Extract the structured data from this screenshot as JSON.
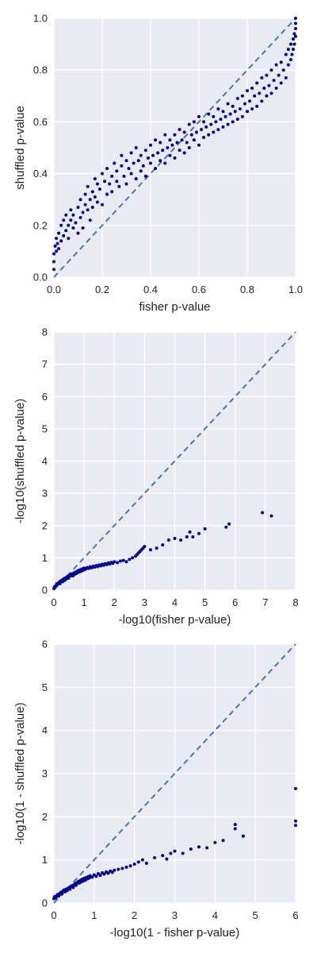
{
  "chart_data": [
    {
      "type": "scatter",
      "xlabel": "fisher p-value",
      "ylabel": "shuffled p-value",
      "xlim": [
        0,
        1
      ],
      "ylim": [
        0,
        1
      ],
      "xticks": [
        "0.0",
        "0.2",
        "0.4",
        "0.6",
        "0.8",
        "1.0"
      ],
      "yticks": [
        "0.0",
        "0.2",
        "0.4",
        "0.6",
        "0.8",
        "1.0"
      ],
      "grid": true,
      "reference_line": "y = x (dashed)",
      "color": "#00008B",
      "line_color": "#4C72B0",
      "points": [
        [
          0.0,
          0.03
        ],
        [
          0.0,
          0.06
        ],
        [
          0.0,
          0.09
        ],
        [
          0.005,
          0.12
        ],
        [
          0.01,
          0.1
        ],
        [
          0.01,
          0.15
        ],
        [
          0.015,
          0.13
        ],
        [
          0.02,
          0.17
        ],
        [
          0.02,
          0.11
        ],
        [
          0.03,
          0.14
        ],
        [
          0.03,
          0.2
        ],
        [
          0.04,
          0.16
        ],
        [
          0.04,
          0.22
        ],
        [
          0.05,
          0.18
        ],
        [
          0.05,
          0.24
        ],
        [
          0.06,
          0.2
        ],
        [
          0.06,
          0.15
        ],
        [
          0.07,
          0.22
        ],
        [
          0.07,
          0.26
        ],
        [
          0.08,
          0.19
        ],
        [
          0.08,
          0.24
        ],
        [
          0.09,
          0.21
        ],
        [
          0.1,
          0.27
        ],
        [
          0.1,
          0.17
        ],
        [
          0.11,
          0.23
        ],
        [
          0.11,
          0.3
        ],
        [
          0.12,
          0.25
        ],
        [
          0.12,
          0.19
        ],
        [
          0.13,
          0.28
        ],
        [
          0.13,
          0.32
        ],
        [
          0.14,
          0.26
        ],
        [
          0.14,
          0.35
        ],
        [
          0.15,
          0.3
        ],
        [
          0.15,
          0.22
        ],
        [
          0.16,
          0.33
        ],
        [
          0.16,
          0.27
        ],
        [
          0.17,
          0.38
        ],
        [
          0.17,
          0.31
        ],
        [
          0.18,
          0.29
        ],
        [
          0.18,
          0.36
        ],
        [
          0.19,
          0.34
        ],
        [
          0.2,
          0.4
        ],
        [
          0.2,
          0.28
        ],
        [
          0.21,
          0.37
        ],
        [
          0.22,
          0.32
        ],
        [
          0.22,
          0.42
        ],
        [
          0.23,
          0.36
        ],
        [
          0.24,
          0.39
        ],
        [
          0.24,
          0.33
        ],
        [
          0.25,
          0.44
        ],
        [
          0.26,
          0.37
        ],
        [
          0.26,
          0.41
        ],
        [
          0.27,
          0.35
        ],
        [
          0.28,
          0.43
        ],
        [
          0.28,
          0.47
        ],
        [
          0.29,
          0.39
        ],
        [
          0.3,
          0.45
        ],
        [
          0.3,
          0.36
        ],
        [
          0.31,
          0.42
        ],
        [
          0.32,
          0.48
        ],
        [
          0.32,
          0.4
        ],
        [
          0.33,
          0.44
        ],
        [
          0.34,
          0.38
        ],
        [
          0.34,
          0.5
        ],
        [
          0.35,
          0.45
        ],
        [
          0.36,
          0.41
        ],
        [
          0.36,
          0.47
        ],
        [
          0.37,
          0.43
        ],
        [
          0.38,
          0.49
        ],
        [
          0.38,
          0.39
        ],
        [
          0.39,
          0.46
        ],
        [
          0.4,
          0.44
        ],
        [
          0.4,
          0.51
        ],
        [
          0.41,
          0.47
        ],
        [
          0.42,
          0.42
        ],
        [
          0.42,
          0.53
        ],
        [
          0.43,
          0.48
        ],
        [
          0.44,
          0.45
        ],
        [
          0.44,
          0.52
        ],
        [
          0.45,
          0.49
        ],
        [
          0.46,
          0.44
        ],
        [
          0.46,
          0.55
        ],
        [
          0.47,
          0.5
        ],
        [
          0.48,
          0.47
        ],
        [
          0.48,
          0.53
        ],
        [
          0.49,
          0.51
        ],
        [
          0.5,
          0.46
        ],
        [
          0.5,
          0.55
        ],
        [
          0.51,
          0.52
        ],
        [
          0.52,
          0.49
        ],
        [
          0.52,
          0.57
        ],
        [
          0.53,
          0.53
        ],
        [
          0.54,
          0.48
        ],
        [
          0.54,
          0.56
        ],
        [
          0.55,
          0.52
        ],
        [
          0.56,
          0.59
        ],
        [
          0.56,
          0.5
        ],
        [
          0.57,
          0.55
        ],
        [
          0.58,
          0.53
        ],
        [
          0.58,
          0.6
        ],
        [
          0.59,
          0.56
        ],
        [
          0.6,
          0.51
        ],
        [
          0.6,
          0.62
        ],
        [
          0.61,
          0.57
        ],
        [
          0.62,
          0.54
        ],
        [
          0.62,
          0.6
        ],
        [
          0.63,
          0.58
        ],
        [
          0.64,
          0.55
        ],
        [
          0.64,
          0.63
        ],
        [
          0.65,
          0.59
        ],
        [
          0.66,
          0.56
        ],
        [
          0.66,
          0.62
        ],
        [
          0.67,
          0.6
        ],
        [
          0.68,
          0.57
        ],
        [
          0.68,
          0.65
        ],
        [
          0.69,
          0.61
        ],
        [
          0.7,
          0.58
        ],
        [
          0.7,
          0.64
        ],
        [
          0.71,
          0.62
        ],
        [
          0.72,
          0.59
        ],
        [
          0.72,
          0.67
        ],
        [
          0.73,
          0.63
        ],
        [
          0.74,
          0.6
        ],
        [
          0.74,
          0.66
        ],
        [
          0.75,
          0.64
        ],
        [
          0.76,
          0.61
        ],
        [
          0.76,
          0.69
        ],
        [
          0.77,
          0.65
        ],
        [
          0.78,
          0.62
        ],
        [
          0.78,
          0.7
        ],
        [
          0.79,
          0.67
        ],
        [
          0.8,
          0.64
        ],
        [
          0.8,
          0.72
        ],
        [
          0.81,
          0.68
        ],
        [
          0.82,
          0.65
        ],
        [
          0.82,
          0.73
        ],
        [
          0.83,
          0.7
        ],
        [
          0.84,
          0.66
        ],
        [
          0.84,
          0.75
        ],
        [
          0.85,
          0.71
        ],
        [
          0.86,
          0.68
        ],
        [
          0.86,
          0.77
        ],
        [
          0.87,
          0.73
        ],
        [
          0.88,
          0.7
        ],
        [
          0.88,
          0.78
        ],
        [
          0.89,
          0.74
        ],
        [
          0.9,
          0.71
        ],
        [
          0.9,
          0.8
        ],
        [
          0.91,
          0.76
        ],
        [
          0.92,
          0.73
        ],
        [
          0.92,
          0.82
        ],
        [
          0.93,
          0.78
        ],
        [
          0.94,
          0.75
        ],
        [
          0.94,
          0.83
        ],
        [
          0.95,
          0.8
        ],
        [
          0.96,
          0.77
        ],
        [
          0.96,
          0.86
        ],
        [
          0.97,
          0.82
        ],
        [
          0.97,
          0.88
        ],
        [
          0.98,
          0.84
        ],
        [
          0.98,
          0.9
        ],
        [
          0.985,
          0.86
        ],
        [
          0.99,
          0.92
        ],
        [
          0.99,
          0.88
        ],
        [
          0.995,
          0.94
        ],
        [
          0.995,
          0.9
        ],
        [
          1.0,
          0.96
        ],
        [
          1.0,
          0.93
        ],
        [
          1.0,
          0.98
        ],
        [
          1.0,
          1.0
        ]
      ]
    },
    {
      "type": "scatter",
      "xlabel": "-log10(fisher p-value)",
      "ylabel": "-log10(shuffled p-value)",
      "xlim": [
        0,
        8
      ],
      "ylim": [
        0,
        8
      ],
      "xticks": [
        "0",
        "1",
        "2",
        "3",
        "4",
        "5",
        "6",
        "7",
        "8"
      ],
      "yticks": [
        "0",
        "1",
        "2",
        "3",
        "4",
        "5",
        "6",
        "7",
        "8"
      ],
      "grid": true,
      "reference_line": "y = x (dashed)",
      "color": "#00008B",
      "line_color": "#4C72B0",
      "points": [
        [
          0.0,
          0.05
        ],
        [
          0.02,
          0.1
        ],
        [
          0.05,
          0.12
        ],
        [
          0.08,
          0.15
        ],
        [
          0.1,
          0.2
        ],
        [
          0.12,
          0.18
        ],
        [
          0.15,
          0.22
        ],
        [
          0.18,
          0.25
        ],
        [
          0.2,
          0.2
        ],
        [
          0.22,
          0.28
        ],
        [
          0.25,
          0.3
        ],
        [
          0.28,
          0.26
        ],
        [
          0.3,
          0.32
        ],
        [
          0.33,
          0.35
        ],
        [
          0.35,
          0.3
        ],
        [
          0.38,
          0.38
        ],
        [
          0.4,
          0.34
        ],
        [
          0.43,
          0.4
        ],
        [
          0.45,
          0.42
        ],
        [
          0.48,
          0.37
        ],
        [
          0.5,
          0.45
        ],
        [
          0.53,
          0.43
        ],
        [
          0.55,
          0.48
        ],
        [
          0.58,
          0.46
        ],
        [
          0.6,
          0.5
        ],
        [
          0.63,
          0.44
        ],
        [
          0.65,
          0.52
        ],
        [
          0.68,
          0.49
        ],
        [
          0.7,
          0.55
        ],
        [
          0.73,
          0.51
        ],
        [
          0.75,
          0.57
        ],
        [
          0.78,
          0.54
        ],
        [
          0.8,
          0.6
        ],
        [
          0.83,
          0.56
        ],
        [
          0.85,
          0.62
        ],
        [
          0.88,
          0.58
        ],
        [
          0.9,
          0.64
        ],
        [
          0.93,
          0.6
        ],
        [
          0.95,
          0.66
        ],
        [
          0.98,
          0.62
        ],
        [
          1.0,
          0.68
        ],
        [
          1.05,
          0.65
        ],
        [
          1.1,
          0.7
        ],
        [
          1.15,
          0.67
        ],
        [
          1.2,
          0.72
        ],
        [
          1.25,
          0.69
        ],
        [
          1.3,
          0.74
        ],
        [
          1.35,
          0.71
        ],
        [
          1.4,
          0.76
        ],
        [
          1.45,
          0.73
        ],
        [
          1.5,
          0.78
        ],
        [
          1.55,
          0.75
        ],
        [
          1.6,
          0.8
        ],
        [
          1.65,
          0.77
        ],
        [
          1.7,
          0.82
        ],
        [
          1.75,
          0.79
        ],
        [
          1.8,
          0.84
        ],
        [
          1.85,
          0.81
        ],
        [
          1.9,
          0.86
        ],
        [
          1.95,
          0.83
        ],
        [
          2.0,
          0.88
        ],
        [
          2.1,
          0.85
        ],
        [
          2.2,
          0.9
        ],
        [
          2.3,
          0.92
        ],
        [
          2.4,
          0.88
        ],
        [
          2.5,
          0.95
        ],
        [
          2.6,
          1.0
        ],
        [
          2.7,
          1.05
        ],
        [
          2.75,
          1.1
        ],
        [
          2.8,
          1.15
        ],
        [
          2.85,
          1.2
        ],
        [
          2.9,
          1.25
        ],
        [
          2.95,
          1.3
        ],
        [
          3.0,
          1.35
        ],
        [
          3.2,
          1.25
        ],
        [
          3.4,
          1.3
        ],
        [
          3.6,
          1.4
        ],
        [
          3.8,
          1.55
        ],
        [
          4.0,
          1.6
        ],
        [
          4.2,
          1.55
        ],
        [
          4.4,
          1.65
        ],
        [
          4.5,
          1.8
        ],
        [
          4.6,
          1.65
        ],
        [
          4.8,
          1.75
        ],
        [
          5.0,
          1.9
        ],
        [
          5.7,
          1.95
        ],
        [
          5.8,
          2.05
        ],
        [
          6.9,
          2.4
        ],
        [
          7.2,
          2.3
        ]
      ]
    },
    {
      "type": "scatter",
      "xlabel": "-log10(1 - fisher p-value)",
      "ylabel": "-log10(1 - shuffled p-value)",
      "xlim": [
        0,
        6
      ],
      "ylim": [
        0,
        6
      ],
      "xticks": [
        "0",
        "1",
        "2",
        "3",
        "4",
        "5",
        "6"
      ],
      "yticks": [
        "0",
        "1",
        "2",
        "3",
        "4",
        "5",
        "6"
      ],
      "grid": true,
      "reference_line": "y = x (dashed)",
      "color": "#00008B",
      "line_color": "#4C72B0",
      "points": [
        [
          0.0,
          0.1
        ],
        [
          0.02,
          0.15
        ],
        [
          0.05,
          0.12
        ],
        [
          0.08,
          0.18
        ],
        [
          0.1,
          0.2
        ],
        [
          0.12,
          0.16
        ],
        [
          0.15,
          0.22
        ],
        [
          0.18,
          0.25
        ],
        [
          0.2,
          0.21
        ],
        [
          0.22,
          0.27
        ],
        [
          0.25,
          0.3
        ],
        [
          0.28,
          0.26
        ],
        [
          0.3,
          0.32
        ],
        [
          0.33,
          0.29
        ],
        [
          0.35,
          0.34
        ],
        [
          0.38,
          0.36
        ],
        [
          0.4,
          0.32
        ],
        [
          0.43,
          0.38
        ],
        [
          0.45,
          0.4
        ],
        [
          0.48,
          0.36
        ],
        [
          0.5,
          0.42
        ],
        [
          0.53,
          0.45
        ],
        [
          0.55,
          0.41
        ],
        [
          0.58,
          0.47
        ],
        [
          0.6,
          0.5
        ],
        [
          0.63,
          0.46
        ],
        [
          0.65,
          0.52
        ],
        [
          0.68,
          0.49
        ],
        [
          0.7,
          0.55
        ],
        [
          0.73,
          0.51
        ],
        [
          0.75,
          0.57
        ],
        [
          0.78,
          0.53
        ],
        [
          0.8,
          0.59
        ],
        [
          0.83,
          0.56
        ],
        [
          0.85,
          0.61
        ],
        [
          0.88,
          0.58
        ],
        [
          0.9,
          0.63
        ],
        [
          0.95,
          0.6
        ],
        [
          1.0,
          0.65
        ],
        [
          1.05,
          0.62
        ],
        [
          1.1,
          0.68
        ],
        [
          1.15,
          0.64
        ],
        [
          1.2,
          0.7
        ],
        [
          1.25,
          0.67
        ],
        [
          1.3,
          0.72
        ],
        [
          1.35,
          0.69
        ],
        [
          1.4,
          0.74
        ],
        [
          1.45,
          0.71
        ],
        [
          1.5,
          0.76
        ],
        [
          1.6,
          0.78
        ],
        [
          1.7,
          0.8
        ],
        [
          1.8,
          0.83
        ],
        [
          1.9,
          0.86
        ],
        [
          2.0,
          0.9
        ],
        [
          2.1,
          0.95
        ],
        [
          2.2,
          1.0
        ],
        [
          2.3,
          0.92
        ],
        [
          2.5,
          1.05
        ],
        [
          2.7,
          1.1
        ],
        [
          2.8,
          1.02
        ],
        [
          2.9,
          1.15
        ],
        [
          3.0,
          1.2
        ],
        [
          3.2,
          1.15
        ],
        [
          3.4,
          1.25
        ],
        [
          3.6,
          1.3
        ],
        [
          3.8,
          1.28
        ],
        [
          4.0,
          1.4
        ],
        [
          4.2,
          1.45
        ],
        [
          4.5,
          1.72
        ],
        [
          4.5,
          1.82
        ],
        [
          4.7,
          1.55
        ],
        [
          6.0,
          1.8
        ],
        [
          6.0,
          1.9
        ],
        [
          6.0,
          2.65
        ]
      ]
    }
  ]
}
